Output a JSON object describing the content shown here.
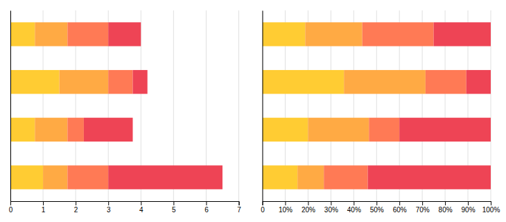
{
  "chart_data": [
    {
      "type": "bar",
      "orientation": "horizontal",
      "stacked": true,
      "grid": true,
      "tick_labels": "x",
      "categories": [
        null,
        null,
        null,
        null
      ],
      "series": [
        {
          "color": "#FFCC33",
          "values": [
            0.75,
            1.5,
            0.75,
            1.0
          ]
        },
        {
          "color": "#FFAA44",
          "values": [
            1.0,
            1.5,
            1.0,
            0.75
          ]
        },
        {
          "color": "#FF7A55",
          "values": [
            1.25,
            0.75,
            0.5,
            1.25
          ]
        },
        {
          "color": "#EE4455",
          "values": [
            1.0,
            0.45,
            1.5,
            3.5
          ]
        }
      ],
      "xlim": [
        0,
        7
      ],
      "xticks": [
        0,
        1,
        2,
        3,
        4,
        5,
        6,
        7
      ]
    },
    {
      "type": "bar",
      "orientation": "horizontal",
      "stacked": true,
      "grid": true,
      "tick_labels": "x",
      "categories": [
        null,
        null,
        null,
        null
      ],
      "series": [
        {
          "color": "#FFCC33",
          "values": [
            0.1875,
            0.35714285714285715,
            0.2,
            0.15384615384615385
          ]
        },
        {
          "color": "#FFAA44",
          "values": [
            0.25,
            0.35714285714285715,
            0.26666666666666666,
            0.11538461538461539
          ]
        },
        {
          "color": "#FF7A55",
          "values": [
            0.3125,
            0.17857142857142858,
            0.13333333333333333,
            0.19230769230769232
          ]
        },
        {
          "color": "#EE4455",
          "values": [
            0.25,
            0.10714285714285714,
            0.4,
            0.5384615384615384
          ]
        }
      ],
      "xlim": [
        0,
        1.0
      ],
      "xticks": [
        0,
        {
          "value": 0.1,
          "label": "10%"
        },
        {
          "value": 0.2,
          "label": "20%"
        },
        {
          "value": 0.3,
          "label": "30%"
        },
        {
          "value": 0.4,
          "label": "40%"
        },
        {
          "value": 0.5,
          "label": "50%"
        },
        {
          "value": 0.6,
          "label": "60%"
        },
        {
          "value": 0.7,
          "label": "70%"
        },
        {
          "value": 0.8,
          "label": "80%"
        },
        {
          "value": 0.9,
          "label": "90%"
        },
        {
          "value": 1.0,
          "label": "100%"
        }
      ]
    }
  ]
}
